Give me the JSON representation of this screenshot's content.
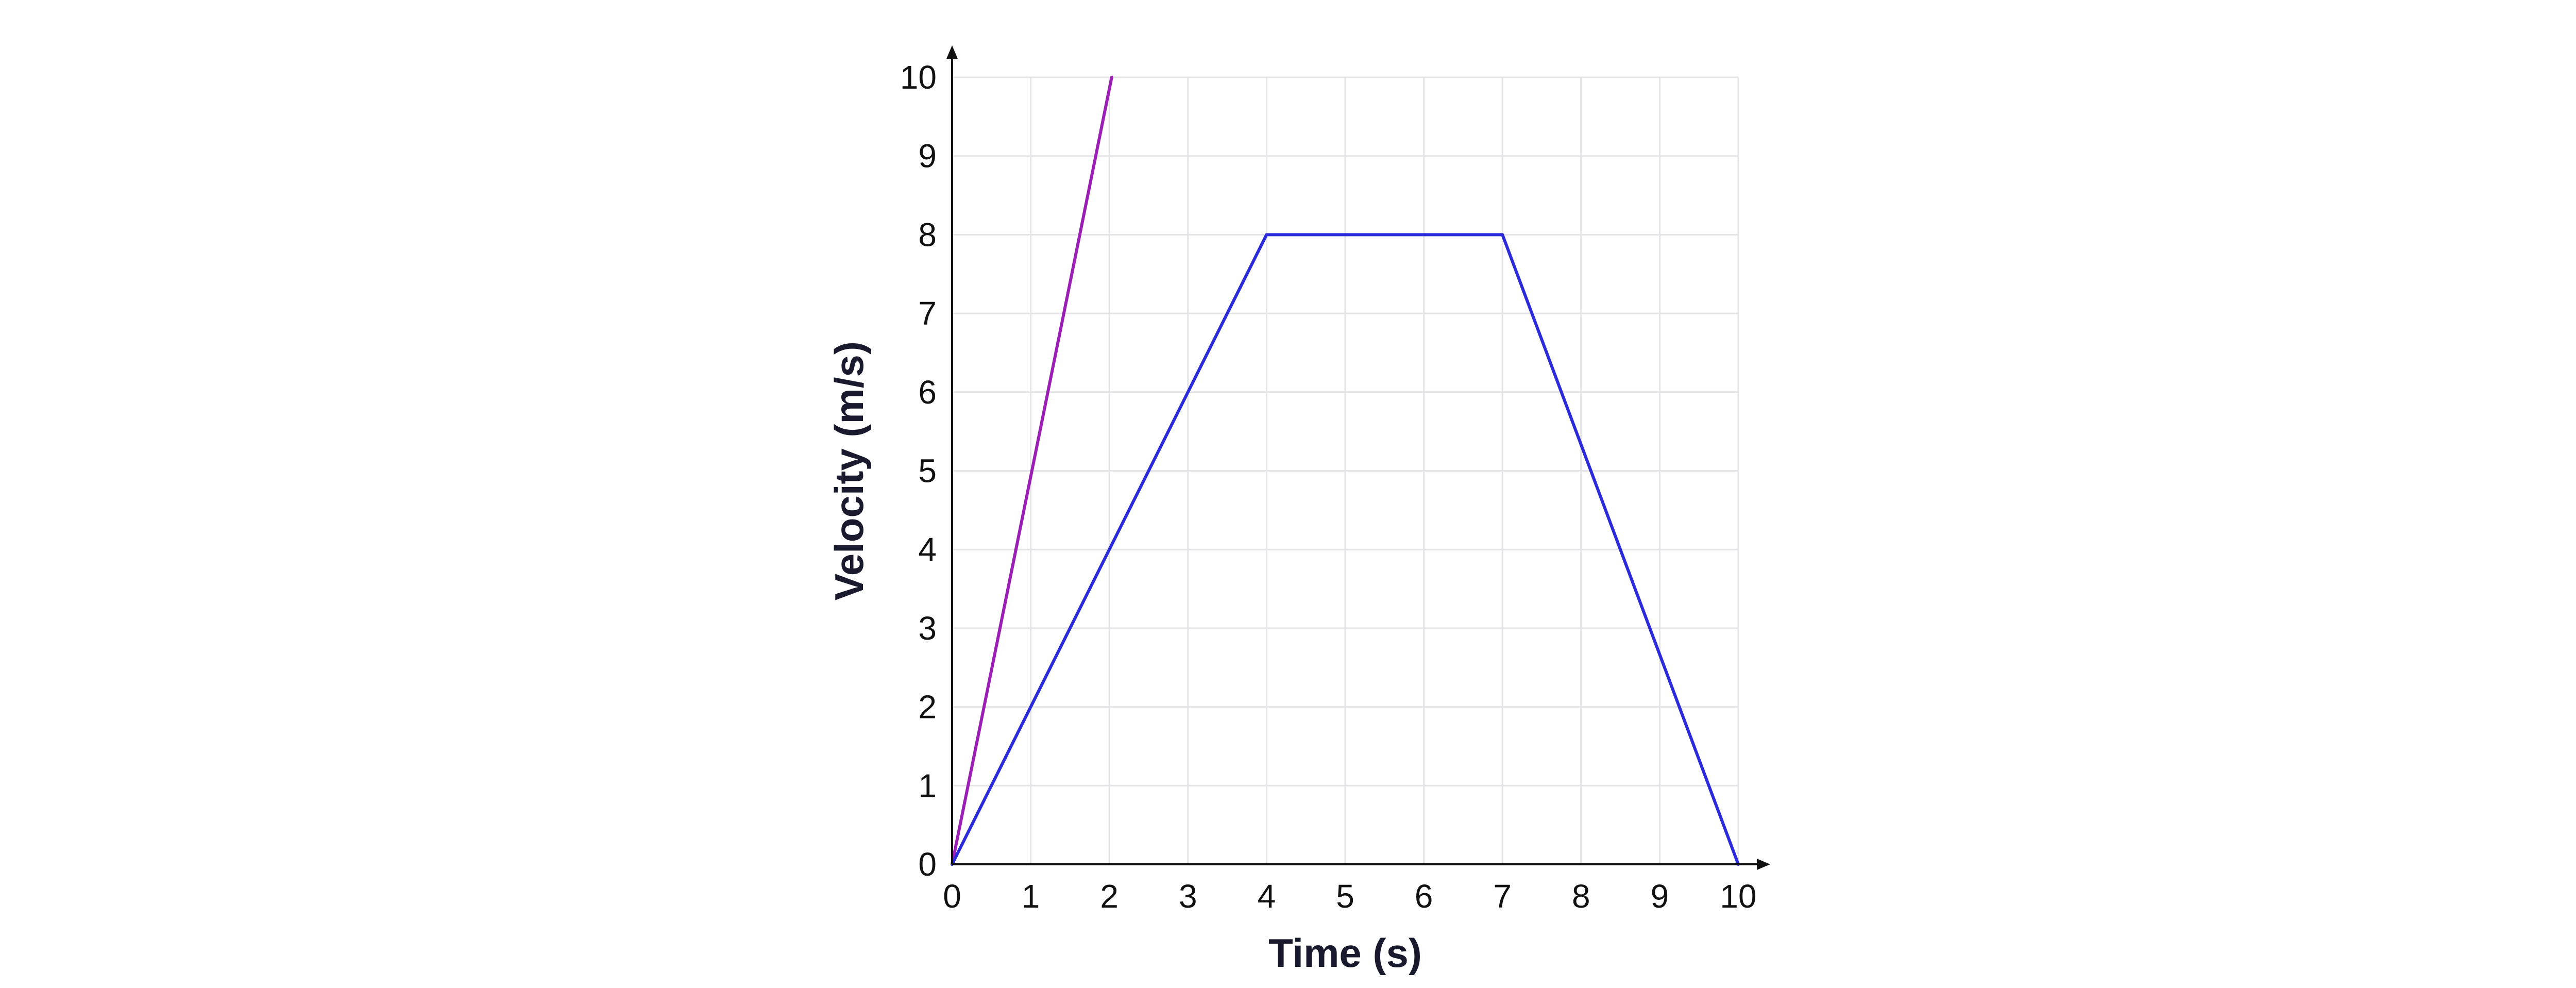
{
  "chart_data": {
    "type": "line",
    "title": "",
    "xlabel": "Time (s)",
    "ylabel": "Velocity (m/s)",
    "xlim": [
      0,
      10
    ],
    "ylim": [
      0,
      10
    ],
    "x_ticks": [
      "0",
      "1",
      "2",
      "3",
      "4",
      "5",
      "6",
      "7",
      "8",
      "9",
      "10"
    ],
    "y_ticks": [
      "0",
      "1",
      "2",
      "3",
      "4",
      "5",
      "6",
      "7",
      "8",
      "9",
      "10"
    ],
    "grid": true,
    "series": [
      {
        "color": "#9b1fb5",
        "x": [
          0,
          2.03
        ],
        "y": [
          0,
          10
        ]
      },
      {
        "color": "#2b2bdb",
        "x": [
          0,
          4,
          7,
          10
        ],
        "y": [
          0,
          8,
          8,
          0
        ]
      }
    ]
  }
}
